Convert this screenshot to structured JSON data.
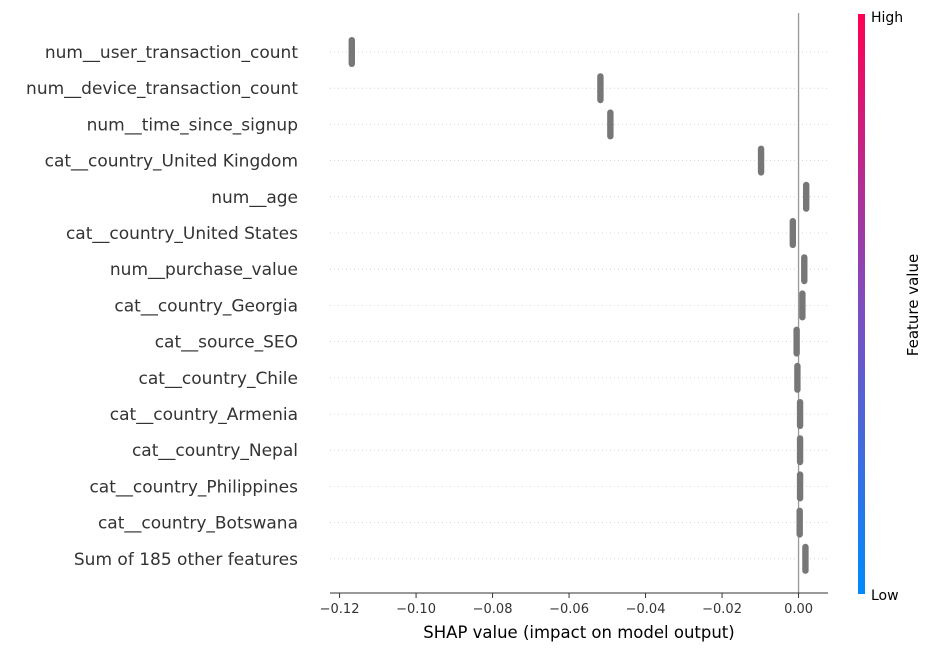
{
  "chart_data": {
    "type": "scatter",
    "title": "",
    "xlabel": "SHAP value (impact on model output)",
    "ylabel": "",
    "xlim": [
      -0.1225,
      0.0077
    ],
    "xticks": [
      {
        "value": -0.12,
        "label": "−0.12"
      },
      {
        "value": -0.1,
        "label": "−0.10"
      },
      {
        "value": -0.08,
        "label": "−0.08"
      },
      {
        "value": -0.06,
        "label": "−0.06"
      },
      {
        "value": -0.04,
        "label": "−0.04"
      },
      {
        "value": -0.02,
        "label": "−0.02"
      },
      {
        "value": 0.0,
        "label": "0.00"
      }
    ],
    "zero_line": 0,
    "grid": false,
    "point_color": "#777777",
    "features": [
      {
        "name": "num__user_transaction_count",
        "shap": -0.1168
      },
      {
        "name": "num__device_transaction_count",
        "shap": -0.0518
      },
      {
        "name": "num__time_since_signup",
        "shap": -0.0492
      },
      {
        "name": "cat__country_United Kingdom",
        "shap": -0.0098
      },
      {
        "name": "num__age",
        "shap": 0.002
      },
      {
        "name": "cat__country_United States",
        "shap": -0.0015
      },
      {
        "name": "num__purchase_value",
        "shap": 0.0015
      },
      {
        "name": "cat__country_Georgia",
        "shap": 0.001
      },
      {
        "name": "cat__source_SEO",
        "shap": -0.0005
      },
      {
        "name": "cat__country_Chile",
        "shap": -0.0003
      },
      {
        "name": "cat__country_Armenia",
        "shap": 0.0004
      },
      {
        "name": "cat__country_Nepal",
        "shap": 0.0004
      },
      {
        "name": "cat__country_Philippines",
        "shap": 0.0004
      },
      {
        "name": "cat__country_Botswana",
        "shap": 0.0003
      },
      {
        "name": "Sum of 185 other features",
        "shap": 0.0018
      }
    ],
    "colorbar": {
      "title": "Feature value",
      "high_label": "High",
      "low_label": "Low",
      "high_color": "#ff0052",
      "low_color": "#008bfb",
      "mid_color": "#7f4cc0"
    }
  }
}
